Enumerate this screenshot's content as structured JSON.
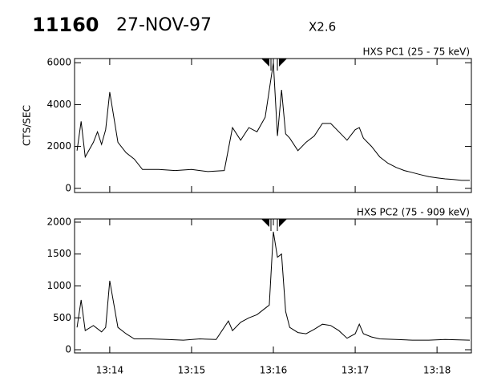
{
  "header": {
    "title": "11160",
    "date": "27-NOV-97",
    "flare_class": "X2.6"
  },
  "chart_data": [
    {
      "type": "line",
      "title": "HXS PC1 (25 - 75 keV)",
      "y_label": "CTS/SEC",
      "color": "#000000",
      "x": [
        793.6,
        793.65,
        793.7,
        793.8,
        793.85,
        793.9,
        793.95,
        794.0,
        794.1,
        794.2,
        794.3,
        794.4,
        794.6,
        794.8,
        795.0,
        795.2,
        795.4,
        795.5,
        795.6,
        795.7,
        795.8,
        795.9,
        796.0,
        796.05,
        796.1,
        796.15,
        796.2,
        796.3,
        796.4,
        796.5,
        796.6,
        796.7,
        796.8,
        796.9,
        797.0,
        797.05,
        797.1,
        797.2,
        797.3,
        797.4,
        797.5,
        797.6,
        797.7,
        797.8,
        797.9,
        798.0,
        798.1,
        798.2,
        798.3,
        798.4
      ],
      "values": [
        1800,
        3200,
        1500,
        2200,
        2700,
        2100,
        2800,
        4600,
        2200,
        1700,
        1400,
        900,
        900,
        850,
        900,
        800,
        850,
        2900,
        2300,
        2900,
        2700,
        3400,
        6000,
        2500,
        4700,
        2600,
        2400,
        1800,
        2200,
        2500,
        3100,
        3100,
        2700,
        2300,
        2800,
        2900,
        2400,
        2000,
        1500,
        1200,
        1000,
        850,
        750,
        650,
        560,
        500,
        450,
        420,
        380,
        380
      ],
      "xlim": [
        793.57,
        798.42
      ],
      "xticks": [
        794,
        795,
        796,
        797,
        798
      ],
      "ylim": [
        -200,
        6200
      ],
      "yticks": [
        0,
        2000,
        4000,
        6000
      ]
    },
    {
      "type": "line",
      "title": "HXS PC2 (75 - 909 keV)",
      "color": "#000000",
      "x": [
        793.6,
        793.65,
        793.7,
        793.8,
        793.9,
        793.95,
        794.0,
        794.1,
        794.2,
        794.3,
        794.5,
        794.7,
        794.9,
        795.1,
        795.3,
        795.45,
        795.5,
        795.6,
        795.7,
        795.8,
        795.9,
        795.95,
        796.0,
        796.05,
        796.1,
        796.15,
        796.2,
        796.3,
        796.4,
        796.5,
        796.6,
        796.7,
        796.8,
        796.9,
        797.0,
        797.05,
        797.1,
        797.2,
        797.3,
        797.5,
        797.7,
        797.9,
        798.1,
        798.4
      ],
      "values": [
        350,
        780,
        300,
        380,
        280,
        350,
        1080,
        350,
        250,
        170,
        170,
        160,
        150,
        170,
        160,
        450,
        300,
        430,
        500,
        550,
        650,
        700,
        1850,
        1450,
        1500,
        600,
        350,
        270,
        250,
        320,
        400,
        380,
        300,
        180,
        250,
        400,
        250,
        200,
        170,
        160,
        150,
        150,
        160,
        150
      ],
      "xlim": [
        793.57,
        798.42
      ],
      "xticks": [
        {
          "value": 794,
          "label": "13:14"
        },
        {
          "value": 795,
          "label": "13:15"
        },
        {
          "value": 796,
          "label": "13:16"
        },
        {
          "value": 797,
          "label": "13:17"
        },
        {
          "value": 798,
          "label": "13:18"
        }
      ],
      "ylim": [
        -50,
        2050
      ],
      "yticks": [
        0,
        500,
        1000,
        1500,
        2000
      ]
    }
  ]
}
